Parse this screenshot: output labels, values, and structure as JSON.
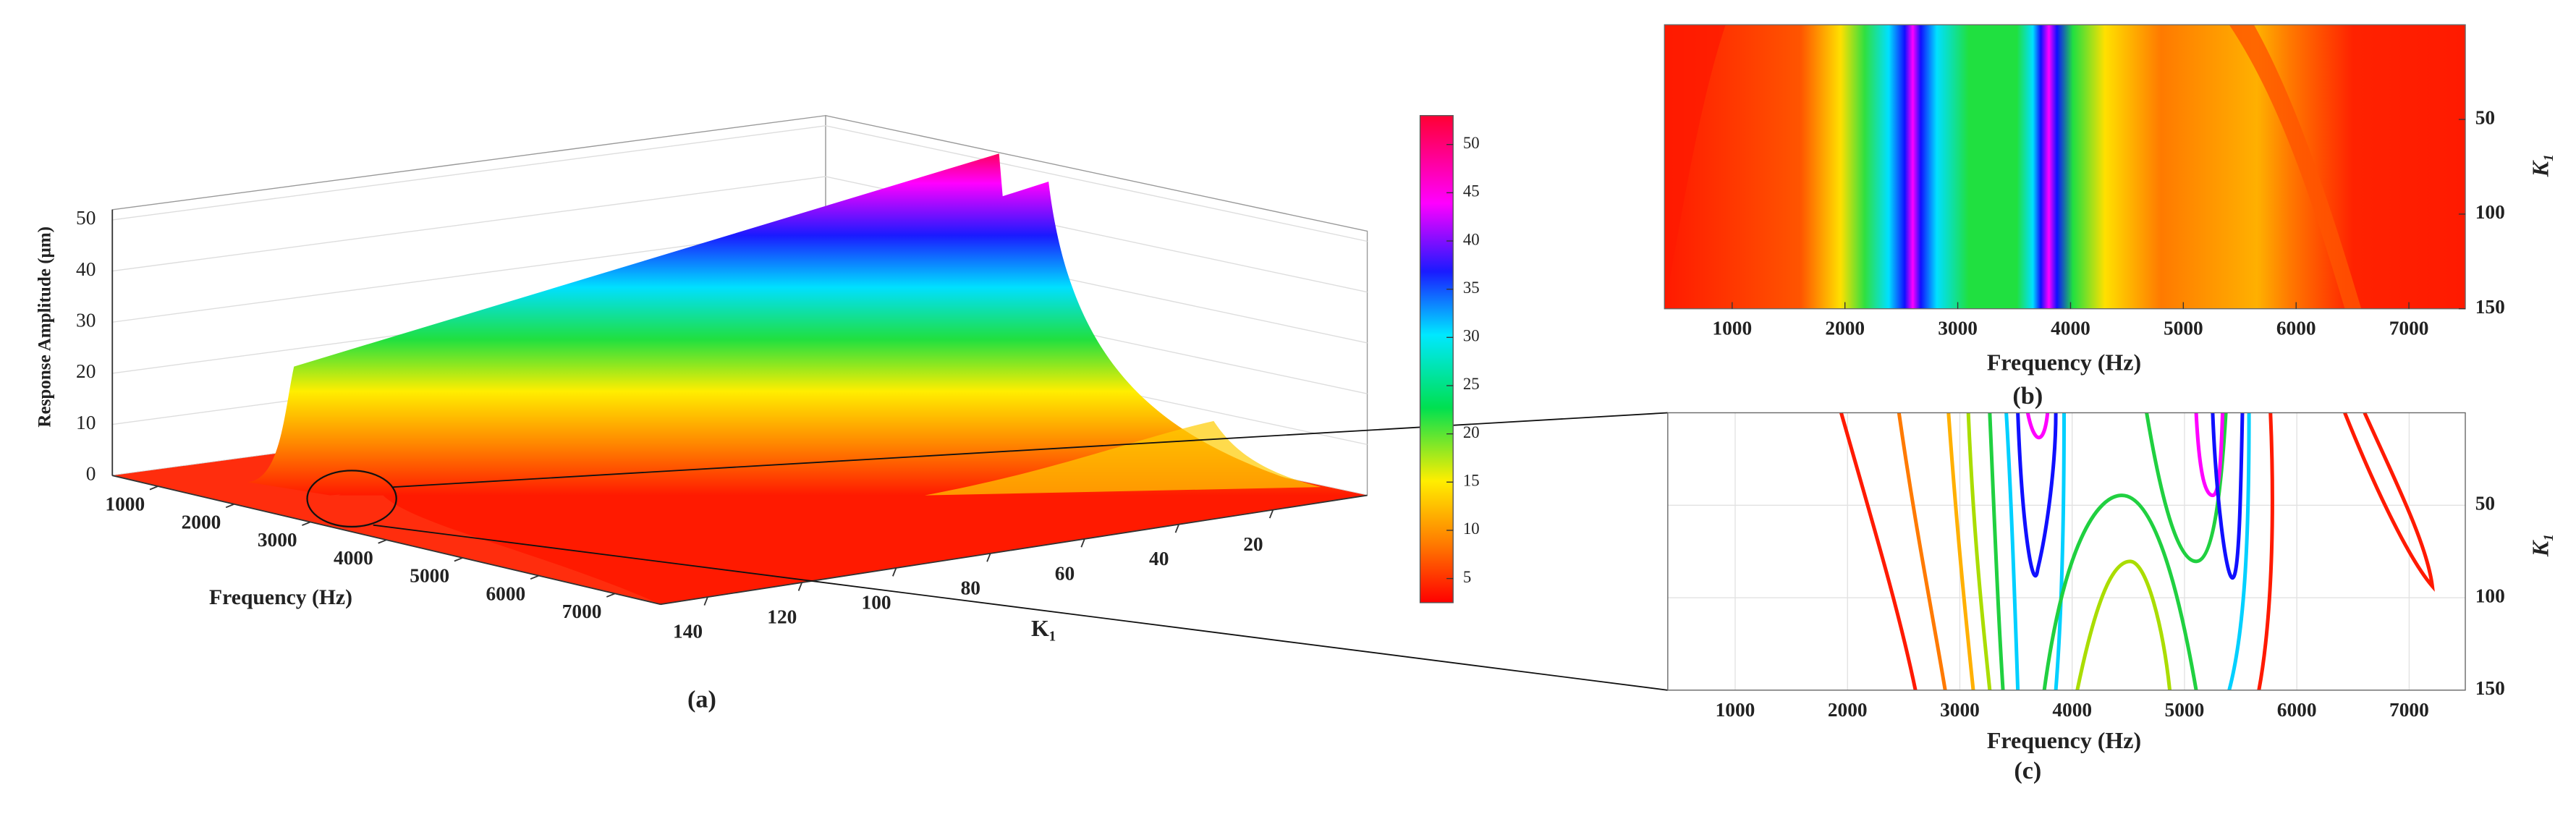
{
  "panel_a": {
    "label": "(a)",
    "zlabel": "Response Amplitude (μm)",
    "zticks": [
      0,
      10,
      20,
      30,
      40,
      50
    ],
    "zlim": [
      0,
      52
    ],
    "freq_label": "Frequency (Hz)",
    "freq_ticks": [
      1000,
      2000,
      3000,
      4000,
      5000,
      6000,
      7000
    ],
    "freq_lim": [
      400,
      7600
    ],
    "k_label": "K₁",
    "k_ticks": [
      20,
      40,
      60,
      80,
      100,
      120,
      140
    ],
    "k_lim": [
      0,
      150
    ],
    "colorbar_ticks": [
      5,
      10,
      15,
      20,
      25,
      30,
      35,
      40,
      45,
      50
    ],
    "colorbar_lim": [
      2.5,
      53
    ]
  },
  "panel_b": {
    "label": "(b)",
    "xlabel": "Frequency (Hz)",
    "ylabel": "K₁",
    "xticks": [
      1000,
      2000,
      3000,
      4000,
      5000,
      6000,
      7000
    ],
    "yticks": [
      50,
      100,
      150
    ],
    "xlim": [
      400,
      7500
    ],
    "ylim": [
      0,
      150
    ]
  },
  "panel_c": {
    "label": "(c)",
    "xlabel": "Frequency (Hz)",
    "ylabel": "K₁",
    "xticks": [
      1000,
      2000,
      3000,
      4000,
      5000,
      6000,
      7000
    ],
    "yticks": [
      50,
      100,
      150
    ],
    "xlim": [
      400,
      7500
    ],
    "ylim": [
      0,
      150
    ]
  }
}
